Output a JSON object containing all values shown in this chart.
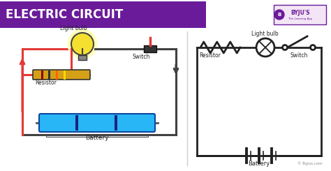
{
  "title": "ELECTRIC CIRCUIT",
  "title_bg": "#6a1b9a",
  "title_color": "#ffffff",
  "bg_color": "#ffffff",
  "left_circuit": {
    "wire_color": "#e53935",
    "wire_color2": "#424242",
    "battery_color": "#29b6f6",
    "resistor_color": "#d4a017",
    "label_bulb": "Light bulb",
    "label_resistor": "Resistor",
    "label_switch": "Switch",
    "label_battery": "Battery"
  },
  "right_circuit": {
    "wire_color": "#212121",
    "label_bulb": "Light bulb",
    "label_resistor": "Resistor",
    "label_switch": "Switch",
    "label_battery": "Battery"
  },
  "byju_text": "© Byjus.com"
}
